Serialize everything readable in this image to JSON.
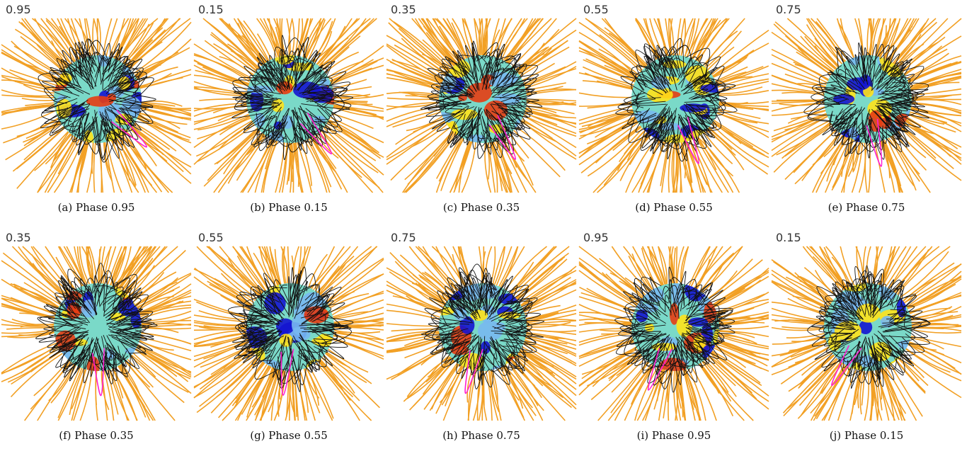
{
  "colors": {
    "open_field": "#f2a024",
    "closed_field": "#111111",
    "highlight_loop": "#ff1ed0",
    "surface_positive": "#e63c12",
    "surface_mid_positive": "#ffe21a",
    "surface_neutral": "#7ad9c8",
    "surface_mid_negative": "#78b8f0",
    "surface_negative": "#1414d0"
  },
  "panels": [
    {
      "id": "a",
      "phase_label": "0.95",
      "caption": "(a) Phase 0.95"
    },
    {
      "id": "b",
      "phase_label": "0.15",
      "caption": "(b) Phase 0.15"
    },
    {
      "id": "c",
      "phase_label": "0.35",
      "caption": "(c) Phase 0.35"
    },
    {
      "id": "d",
      "phase_label": "0.55",
      "caption": "(d) Phase 0.55"
    },
    {
      "id": "e",
      "phase_label": "0.75",
      "caption": "(e) Phase 0.75"
    },
    {
      "id": "f",
      "phase_label": "0.35",
      "caption": "(f) Phase 0.35"
    },
    {
      "id": "g",
      "phase_label": "0.55",
      "caption": "(g) Phase 0.55"
    },
    {
      "id": "h",
      "phase_label": "0.75",
      "caption": "(h) Phase 0.75"
    },
    {
      "id": "i",
      "phase_label": "0.95",
      "caption": "(i) Phase 0.95"
    },
    {
      "id": "j",
      "phase_label": "0.15",
      "caption": "(j) Phase 0.15"
    }
  ]
}
